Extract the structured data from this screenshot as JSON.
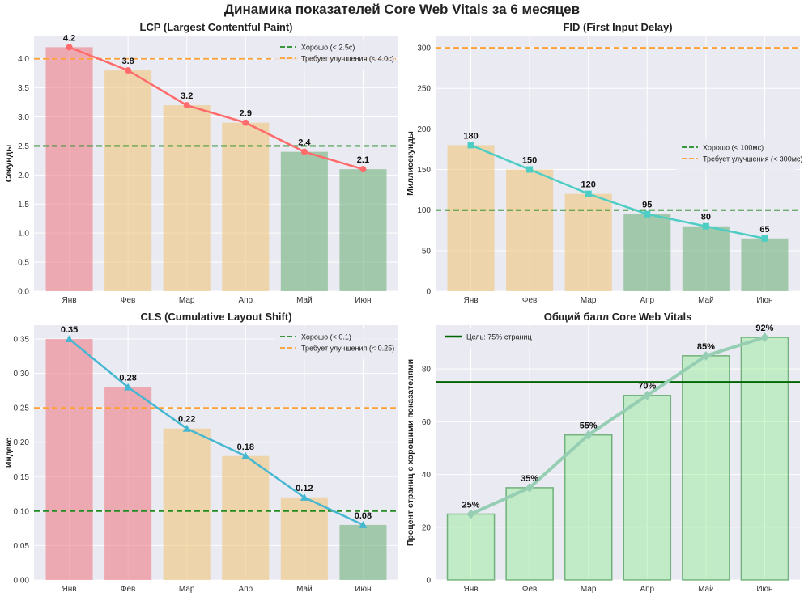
{
  "title": "Динамика показателей Core Web Vitals за 6 месяцев",
  "chart_data": [
    {
      "type": "bar",
      "title": "LCP (Largest Contentful Paint)",
      "ylabel": "Секунды",
      "xlabel": "",
      "categories": [
        "Янв",
        "Фев",
        "Мар",
        "Апр",
        "Май",
        "Июн"
      ],
      "values": [
        4.2,
        3.8,
        3.2,
        2.9,
        2.4,
        2.1
      ],
      "value_labels": [
        "4.2",
        "3.8",
        "3.2",
        "2.9",
        "2.4",
        "2.1"
      ],
      "bar_colors": [
        "#ee7d87",
        "#f0c47a",
        "#f0c47a",
        "#f0c47a",
        "#6fb07a",
        "#6fb07a"
      ],
      "line_color": "#ff6b6b",
      "marker": "circle",
      "ylim": [
        0,
        4.4
      ],
      "yticks": [
        "0.0",
        "0.5",
        "1.0",
        "1.5",
        "2.0",
        "2.5",
        "3.0",
        "3.5",
        "4.0"
      ],
      "ytick_values": [
        0,
        0.5,
        1.0,
        1.5,
        2.0,
        2.5,
        3.0,
        3.5,
        4.0
      ],
      "thresholds": [
        {
          "label": "Хорошо (< 2.5с)",
          "value": 2.5,
          "color": "#228b22"
        },
        {
          "label": "Требует улучшения (< 4.0с)",
          "value": 4.0,
          "color": "#ffa033"
        }
      ],
      "legend": "top-right",
      "grid": true
    },
    {
      "type": "bar",
      "title": "FID (First Input Delay)",
      "ylabel": "Миллисекунды",
      "xlabel": "",
      "categories": [
        "Янв",
        "Фев",
        "Мар",
        "Апр",
        "Май",
        "Июн"
      ],
      "values": [
        180,
        150,
        120,
        95,
        80,
        65
      ],
      "value_labels": [
        "180",
        "150",
        "120",
        "95",
        "80",
        "65"
      ],
      "bar_colors": [
        "#f0c47a",
        "#f0c47a",
        "#f0c47a",
        "#6fb07a",
        "#6fb07a",
        "#6fb07a"
      ],
      "line_color": "#4ecdc4",
      "marker": "square",
      "ylim": [
        0,
        315
      ],
      "yticks": [
        "0",
        "50",
        "100",
        "150",
        "200",
        "250",
        "300"
      ],
      "ytick_values": [
        0,
        50,
        100,
        150,
        200,
        250,
        300
      ],
      "thresholds": [
        {
          "label": "Хорошо (< 100мс)",
          "value": 100,
          "color": "#228b22"
        },
        {
          "label": "Требует улучшения (< 300мс)",
          "value": 300,
          "color": "#ffa033"
        }
      ],
      "legend": "center-right",
      "grid": true
    },
    {
      "type": "bar",
      "title": "CLS (Cumulative Layout Shift)",
      "ylabel": "Индекс",
      "xlabel": "",
      "categories": [
        "Янв",
        "Фев",
        "Мар",
        "Апр",
        "Май",
        "Июн"
      ],
      "values": [
        0.35,
        0.28,
        0.22,
        0.18,
        0.12,
        0.08
      ],
      "value_labels": [
        "0.35",
        "0.28",
        "0.22",
        "0.18",
        "0.12",
        "0.08"
      ],
      "bar_colors": [
        "#ee7d87",
        "#ee7d87",
        "#f0c47a",
        "#f0c47a",
        "#f0c47a",
        "#6fb07a"
      ],
      "line_color": "#45b7d1",
      "marker": "triangle",
      "ylim": [
        0,
        0.37
      ],
      "yticks": [
        "0.00",
        "0.05",
        "0.10",
        "0.15",
        "0.20",
        "0.25",
        "0.30",
        "0.35"
      ],
      "ytick_values": [
        0,
        0.05,
        0.1,
        0.15,
        0.2,
        0.25,
        0.3,
        0.35
      ],
      "thresholds": [
        {
          "label": "Хорошо (< 0.1)",
          "value": 0.1,
          "color": "#228b22"
        },
        {
          "label": "Требует улучшения (< 0.25)",
          "value": 0.25,
          "color": "#ffa033"
        }
      ],
      "legend": "top-right",
      "grid": true
    },
    {
      "type": "bar",
      "title": "Общий балл Core Web Vitals",
      "ylabel": "Процент страниц с хорошими показателями",
      "xlabel": "",
      "categories": [
        "Янв",
        "Фев",
        "Мар",
        "Апр",
        "Май",
        "Июн"
      ],
      "values": [
        25,
        35,
        55,
        70,
        85,
        92
      ],
      "value_labels": [
        "25%",
        "35%",
        "55%",
        "70%",
        "85%",
        "92%"
      ],
      "bar_colors": [
        "#90ee90",
        "#90ee90",
        "#90ee90",
        "#90ee90",
        "#90ee90",
        "#90ee90"
      ],
      "bar_edge": "#2e8b3a",
      "line_color": "#96ceb4",
      "marker": "diamond",
      "ylim": [
        0,
        96.6
      ],
      "yticks": [
        "0",
        "20",
        "40",
        "60",
        "80"
      ],
      "ytick_values": [
        0,
        20,
        40,
        60,
        80
      ],
      "thresholds": [
        {
          "label": "Цель: 75% страниц",
          "value": 75,
          "color": "#006400",
          "solid": true
        }
      ],
      "legend": "top-left",
      "grid": true
    }
  ]
}
